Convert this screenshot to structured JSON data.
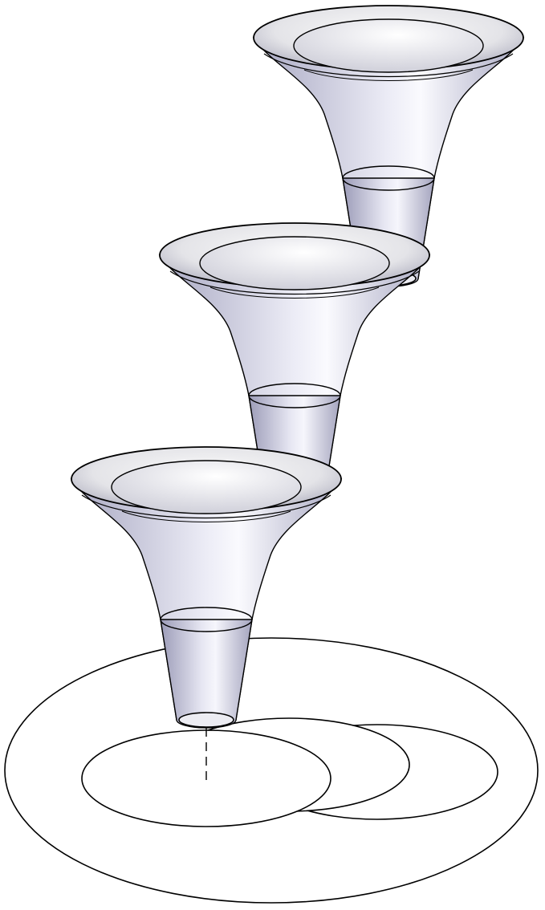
{
  "diagram": {
    "type": "isometric-cad-view",
    "funnels": [
      {
        "id": "funnel-top"
      },
      {
        "id": "funnel-middle"
      },
      {
        "id": "funnel-bottom"
      }
    ],
    "base_outline": {
      "outer_ring": true,
      "inner_circles": 3
    },
    "axis_line_style": "dashed",
    "colors": {
      "background": "#ffffff",
      "outline": "#000000",
      "funnel_fill_light": "#e8e8f0",
      "funnel_fill_dark": "#a6a6c0",
      "funnel_highlight": "#fbfbff"
    }
  }
}
